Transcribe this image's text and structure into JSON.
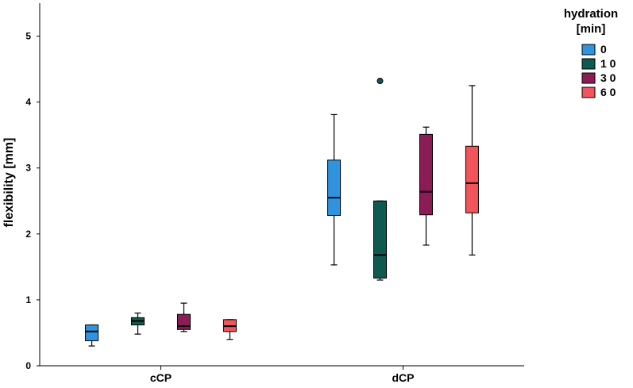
{
  "chart_data": {
    "type": "boxplot",
    "title": "",
    "xlabel": "",
    "ylabel": "flexibility [mm]",
    "ylim": [
      0,
      5.5
    ],
    "yticks": [
      "0",
      "1",
      "2",
      "3",
      "4",
      "5"
    ],
    "grid": false,
    "legend_position": "top-right",
    "legend_title_line1": "hydration",
    "legend_title_line2": "[min]",
    "categories": [
      "cCP",
      "dCP"
    ],
    "series": [
      {
        "name": "0",
        "color": "#2f93e0",
        "boxes": [
          {
            "min": 0.3,
            "q1": 0.38,
            "median": 0.52,
            "q3": 0.62,
            "max": 0.62,
            "outliers": []
          },
          {
            "min": 1.53,
            "q1": 2.28,
            "median": 2.55,
            "q3": 3.12,
            "max": 3.81,
            "outliers": []
          }
        ]
      },
      {
        "name": "10",
        "color": "#0f5a50",
        "boxes": [
          {
            "min": 0.48,
            "q1": 0.62,
            "median": 0.68,
            "q3": 0.73,
            "max": 0.8,
            "outliers": []
          },
          {
            "min": 1.3,
            "q1": 1.33,
            "median": 1.68,
            "q3": 2.5,
            "max": 2.5,
            "outliers": [
              4.32
            ]
          }
        ]
      },
      {
        "name": "30",
        "color": "#8c1c56",
        "boxes": [
          {
            "min": 0.52,
            "q1": 0.55,
            "median": 0.6,
            "q3": 0.78,
            "max": 0.95,
            "outliers": []
          },
          {
            "min": 1.83,
            "q1": 2.29,
            "median": 2.64,
            "q3": 3.51,
            "max": 3.62,
            "outliers": []
          }
        ]
      },
      {
        "name": "60",
        "color": "#f2545b",
        "boxes": [
          {
            "min": 0.4,
            "q1": 0.52,
            "median": 0.6,
            "q3": 0.7,
            "max": 0.7,
            "outliers": []
          },
          {
            "min": 1.68,
            "q1": 2.32,
            "median": 2.77,
            "q3": 3.33,
            "max": 4.25,
            "outliers": []
          }
        ]
      }
    ]
  }
}
